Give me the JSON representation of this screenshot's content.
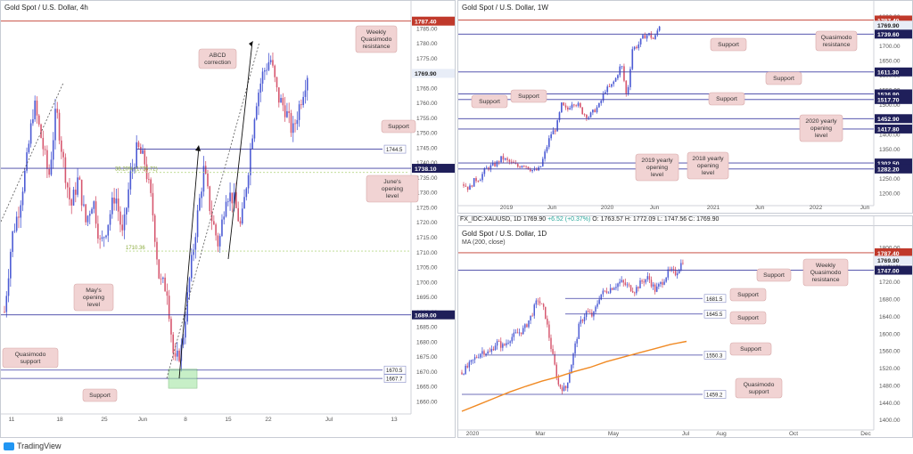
{
  "footer": {
    "brand": "TradingView",
    "logo_icon": "tradingview-logo-icon"
  },
  "colors": {
    "candle_up": "#4c5bd4",
    "candle_down": "#d6566e",
    "resistance_line": "#c0392b",
    "support_line": "#3f3fa3",
    "ma_line": "#f08a24",
    "label_bg": "#f1d3d3",
    "green_zone": "#9be39b"
  },
  "chart_data": [
    {
      "panel": "left",
      "type": "candlestick",
      "title": "Gold Spot / U.S. Dollar, 4h",
      "y_ticks": [
        1660,
        1665,
        1670,
        1675,
        1680,
        1685,
        1690,
        1695,
        1700,
        1705,
        1710,
        1715,
        1720,
        1725,
        1730,
        1735,
        1740,
        1745,
        1750,
        1755,
        1760,
        1765,
        1770,
        1775,
        1780,
        1785
      ],
      "ylim": [
        1657,
        1790
      ],
      "x_ticks": [
        "11",
        "18",
        "25",
        "Jun",
        "8",
        "15",
        "22",
        "Jul",
        "13"
      ],
      "price_labels": [
        {
          "text": "1787.40",
          "value": 1787.4,
          "kind": "resistance"
        },
        {
          "text": "1769.90",
          "value": 1769.9,
          "kind": "current"
        },
        {
          "text": "1738.10",
          "value": 1738.1,
          "kind": "support"
        },
        {
          "text": "1689.00",
          "value": 1689.0,
          "kind": "support"
        }
      ],
      "line_values": [
        {
          "text": "1744.5",
          "value": 1744.5
        },
        {
          "text": "1670.5",
          "value": 1670.5
        },
        {
          "text": "1667.7",
          "value": 1667.7
        }
      ],
      "fib_labels": [
        {
          "text": "38.20% (1736.72)",
          "value": 1736.72
        },
        {
          "text": "1710.36",
          "value": 1710.36
        }
      ],
      "annotations": [
        {
          "text": "Weekly Quasimodo resistance"
        },
        {
          "text": "ABCD correction"
        },
        {
          "text": "Support"
        },
        {
          "text": "June's opening level"
        },
        {
          "text": "May's opening level"
        },
        {
          "text": "Quasimodo support"
        },
        {
          "text": "Support"
        }
      ],
      "close_path": [
        1690,
        1715,
        1725,
        1740,
        1760,
        1748,
        1735,
        1758,
        1740,
        1725,
        1735,
        1720,
        1728,
        1712,
        1720,
        1730,
        1715,
        1735,
        1745,
        1740,
        1725,
        1700,
        1698,
        1672,
        1678,
        1700,
        1720,
        1738,
        1722,
        1712,
        1730,
        1728,
        1718,
        1738,
        1760,
        1770,
        1775,
        1762,
        1758,
        1750,
        1760,
        1769.9
      ]
    },
    {
      "panel": "top-right",
      "type": "candlestick",
      "title": "Gold Spot / U.S. Dollar, 1W",
      "y_ticks": [
        1200,
        1250,
        1300,
        1350,
        1400,
        1450,
        1500,
        1550,
        1600,
        1650,
        1700,
        1750,
        1800
      ],
      "ylim": [
        1170,
        1810
      ],
      "x_ticks": [
        "2019",
        "Jun",
        "2020",
        "Jun",
        "2021",
        "Jun",
        "2022",
        "Jun"
      ],
      "price_labels": [
        {
          "text": "1787.40",
          "value": 1787.4,
          "kind": "resistance"
        },
        {
          "text": "1769.90",
          "value": 1769.9,
          "kind": "current"
        },
        {
          "text": "1739.60",
          "value": 1739.6,
          "kind": "support"
        },
        {
          "text": "1611.30",
          "value": 1611.3,
          "kind": "support"
        },
        {
          "text": "1536.90",
          "value": 1536.9,
          "kind": "support"
        },
        {
          "text": "1517.70",
          "value": 1517.7,
          "kind": "support"
        },
        {
          "text": "1452.90",
          "value": 1452.9,
          "kind": "support"
        },
        {
          "text": "1417.80",
          "value": 1417.8,
          "kind": "support"
        },
        {
          "text": "1302.50",
          "value": 1302.5,
          "kind": "support"
        },
        {
          "text": "1282.20",
          "value": 1282.2,
          "kind": "support"
        }
      ],
      "annotations": [
        {
          "text": "Support"
        },
        {
          "text": "Quasimodo resistance"
        },
        {
          "text": "Support"
        },
        {
          "text": "Support"
        },
        {
          "text": "Support"
        },
        {
          "text": "Support"
        },
        {
          "text": "2020 yearly opening level"
        },
        {
          "text": "2019 yearly opening level"
        },
        {
          "text": "2018 yearly opening level"
        }
      ],
      "close_path": [
        1230,
        1215,
        1245,
        1250,
        1282,
        1290,
        1300,
        1320,
        1310,
        1300,
        1290,
        1300,
        1285,
        1275,
        1282,
        1340,
        1400,
        1420,
        1500,
        1480,
        1510,
        1500,
        1470,
        1460,
        1480,
        1500,
        1550,
        1560,
        1590,
        1640,
        1520,
        1690,
        1700,
        1730,
        1740,
        1720,
        1769.9
      ]
    },
    {
      "panel": "bottom-right",
      "type": "candlestick",
      "title": "Gold Spot / U.S. Dollar, 1D",
      "ohlc_header": {
        "symbol": "FX_IDC:XAUUSD, 1D",
        "close": "1769.90",
        "change": "+6.52 (+0.37%)",
        "open": "O: 1763.57",
        "high": "H: 1772.09",
        "low": "L: 1747.56",
        "close_label": "C: 1769.90"
      },
      "indicator": "MA (200, close)",
      "y_ticks": [
        1400,
        1440,
        1480,
        1520,
        1560,
        1600,
        1640,
        1680,
        1720,
        1760,
        1800
      ],
      "ylim": [
        1385,
        1810
      ],
      "x_ticks": [
        "2020",
        "Mar",
        "May",
        "Jul",
        "Aug",
        "Oct",
        "Dec"
      ],
      "price_labels": [
        {
          "text": "1787.40",
          "value": 1787.4,
          "kind": "resistance"
        },
        {
          "text": "1769.90",
          "value": 1769.9,
          "kind": "current"
        },
        {
          "text": "1747.00",
          "value": 1747.0,
          "kind": "support"
        }
      ],
      "line_values": [
        {
          "text": "1681.5",
          "value": 1681.5
        },
        {
          "text": "1645.5",
          "value": 1645.5
        },
        {
          "text": "1550.3",
          "value": 1550.3
        },
        {
          "text": "1459.2",
          "value": 1459.2
        }
      ],
      "annotations": [
        {
          "text": "Support"
        },
        {
          "text": "Weekly Quasimodo resistance"
        },
        {
          "text": "Support"
        },
        {
          "text": "Support"
        },
        {
          "text": "Support"
        },
        {
          "text": "Quasimodo support"
        }
      ],
      "close_path": [
        1510,
        1525,
        1545,
        1560,
        1555,
        1580,
        1570,
        1590,
        1600,
        1610,
        1640,
        1680,
        1650,
        1560,
        1480,
        1470,
        1540,
        1620,
        1650,
        1640,
        1690,
        1700,
        1710,
        1720,
        1710,
        1700,
        1720,
        1730,
        1700,
        1720,
        1745,
        1740,
        1769.9
      ],
      "ma_path": [
        1420,
        1435,
        1450,
        1465,
        1478,
        1490,
        1500,
        1512,
        1522,
        1535,
        1545,
        1555,
        1565,
        1575,
        1582
      ]
    }
  ]
}
